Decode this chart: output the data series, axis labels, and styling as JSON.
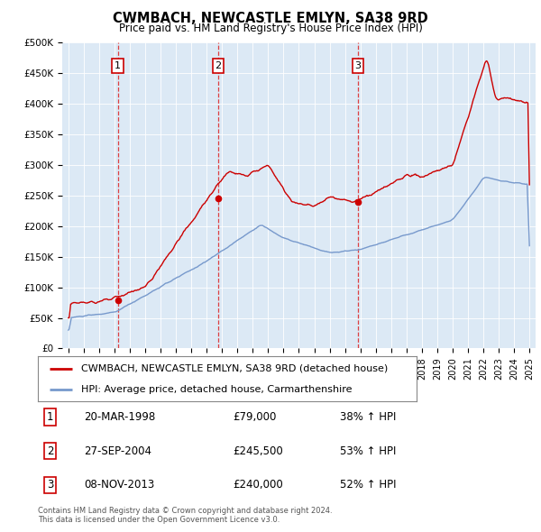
{
  "title": "CWMBACH, NEWCASTLE EMLYN, SA38 9RD",
  "subtitle": "Price paid vs. HM Land Registry's House Price Index (HPI)",
  "plot_bg_color": "#dce9f5",
  "y_ticks": [
    0,
    50000,
    100000,
    150000,
    200000,
    250000,
    300000,
    350000,
    400000,
    450000,
    500000
  ],
  "y_tick_labels": [
    "£0",
    "£50K",
    "£100K",
    "£150K",
    "£200K",
    "£250K",
    "£300K",
    "£350K",
    "£400K",
    "£450K",
    "£500K"
  ],
  "sale_color": "#cc0000",
  "hpi_color": "#7799cc",
  "sale_points": [
    {
      "year": 1998.22,
      "price": 79000,
      "label": "1"
    },
    {
      "year": 2004.74,
      "price": 245500,
      "label": "2"
    },
    {
      "year": 2013.85,
      "price": 240000,
      "label": "3"
    }
  ],
  "vline_color": "#dd2222",
  "legend_entries": [
    "CWMBACH, NEWCASTLE EMLYN, SA38 9RD (detached house)",
    "HPI: Average price, detached house, Carmarthenshire"
  ],
  "table_rows": [
    {
      "num": "1",
      "date": "20-MAR-1998",
      "price": "£79,000",
      "pct": "38% ↑ HPI"
    },
    {
      "num": "2",
      "date": "27-SEP-2004",
      "price": "£245,500",
      "pct": "53% ↑ HPI"
    },
    {
      "num": "3",
      "date": "08-NOV-2013",
      "price": "£240,000",
      "pct": "52% ↑ HPI"
    }
  ],
  "footer": "Contains HM Land Registry data © Crown copyright and database right 2024.\nThis data is licensed under the Open Government Licence v3.0."
}
